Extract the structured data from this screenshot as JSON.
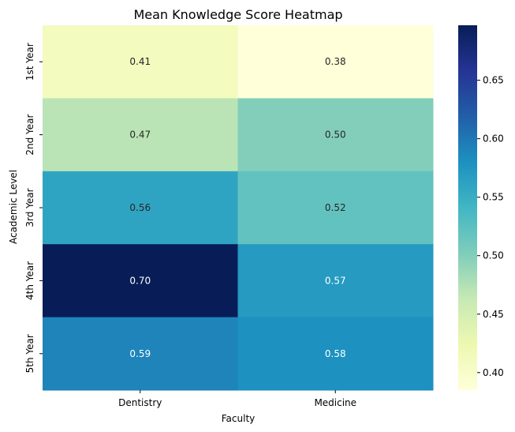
{
  "chart_data": {
    "type": "heatmap",
    "title": "Mean Knowledge Score Heatmap",
    "xlabel": "Faculty",
    "ylabel": "Academic Level",
    "x_categories": [
      "Dentistry",
      "Medicine"
    ],
    "y_categories": [
      "1st Year",
      "2nd Year",
      "3rd Year",
      "4th Year",
      "5th Year"
    ],
    "values": [
      [
        0.41,
        0.38
      ],
      [
        0.47,
        0.5
      ],
      [
        0.56,
        0.52
      ],
      [
        0.7,
        0.57
      ],
      [
        0.59,
        0.58
      ]
    ],
    "value_labels": [
      [
        "0.41",
        "0.38"
      ],
      [
        "0.47",
        "0.50"
      ],
      [
        "0.56",
        "0.52"
      ],
      [
        "0.70",
        "0.57"
      ],
      [
        "0.59",
        "0.58"
      ]
    ],
    "colorbar": {
      "range": [
        0.385,
        0.697
      ],
      "ticks": [
        0.4,
        0.45,
        0.5,
        0.55,
        0.6,
        0.65
      ],
      "tick_labels": [
        "0.40",
        "0.45",
        "0.50",
        "0.55",
        "0.60",
        "0.65"
      ],
      "colormap": "YlGnBu",
      "stops": [
        "#ffffd9",
        "#edf8b1",
        "#c7e9b4",
        "#7fcdbb",
        "#41b6c4",
        "#1d91c0",
        "#225ea8",
        "#253494",
        "#081d58"
      ]
    }
  }
}
